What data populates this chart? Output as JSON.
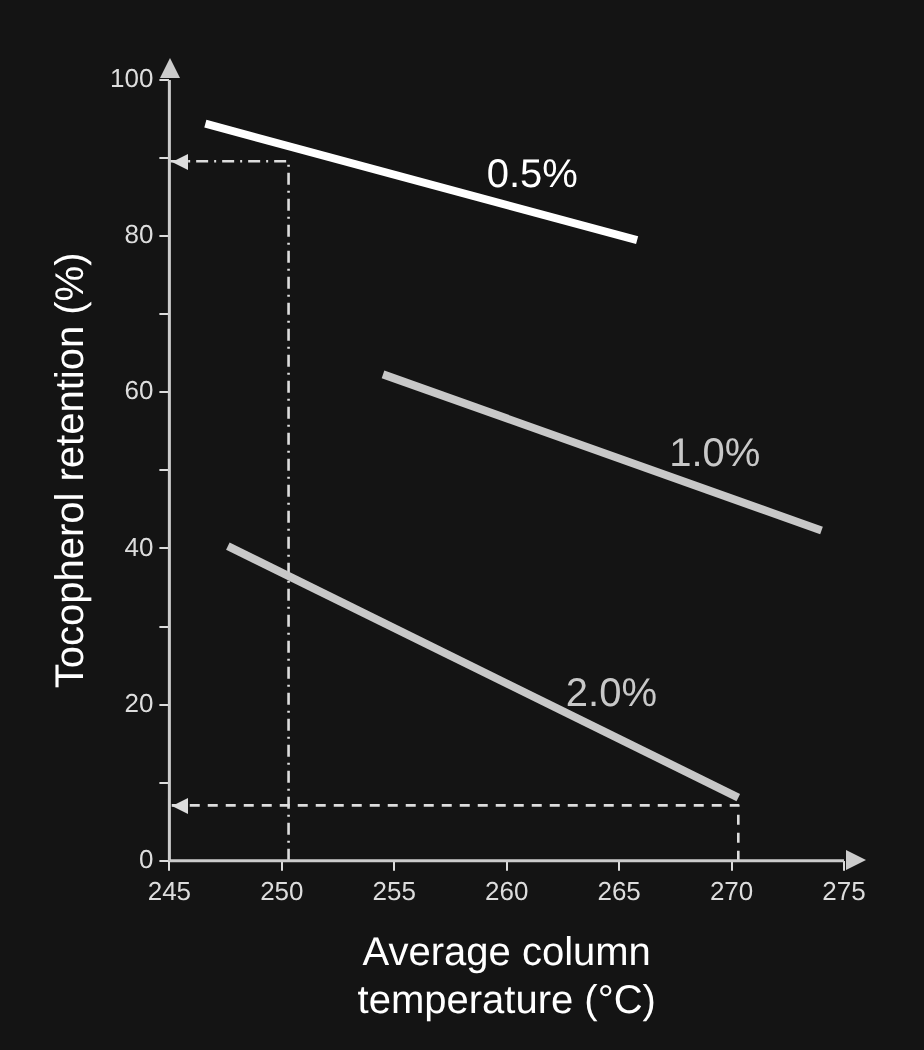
{
  "chart_data": {
    "type": "line",
    "xlabel": "Average column temperature (°C)",
    "ylabel": "Tocopherol retention (%)",
    "xlim": [
      245,
      275
    ],
    "xticks": [
      245,
      250,
      255,
      260,
      265,
      270,
      275
    ],
    "ylim": [
      0,
      100
    ],
    "yticks": [
      0,
      {
        "value": 10,
        "label": null
      },
      20,
      {
        "value": 30,
        "label": null
      },
      40,
      {
        "value": 50,
        "label": null
      },
      60,
      {
        "value": 70,
        "label": null
      },
      80,
      {
        "value": 90,
        "label": null
      },
      100
    ],
    "grid": false,
    "legend": false,
    "marker": "none",
    "series": [
      {
        "name": "0.5%",
        "color": "#ffffff",
        "x": [
          246.6,
          265.8
        ],
        "values": [
          94.4,
          79.5
        ]
      },
      {
        "name": "1.0%",
        "color": "#c8c8c8",
        "x": [
          254.5,
          274.0
        ],
        "values": [
          62.3,
          42.3
        ]
      },
      {
        "name": "2.0%",
        "color": "#c8c8c8",
        "x": [
          247.6,
          270.3
        ],
        "values": [
          40.3,
          8.1
        ]
      },
      {
        "color": "#dddddd",
        "line_style": "dotted",
        "x": [
          250.3,
          250.3,
          245
        ],
        "values": [
          0,
          89.6,
          89.6
        ]
      },
      {
        "color": "#dddddd",
        "line_style": "dashed",
        "x": [
          270.3,
          270.3,
          245
        ],
        "values": [
          0,
          7.1,
          7.1
        ]
      }
    ]
  }
}
